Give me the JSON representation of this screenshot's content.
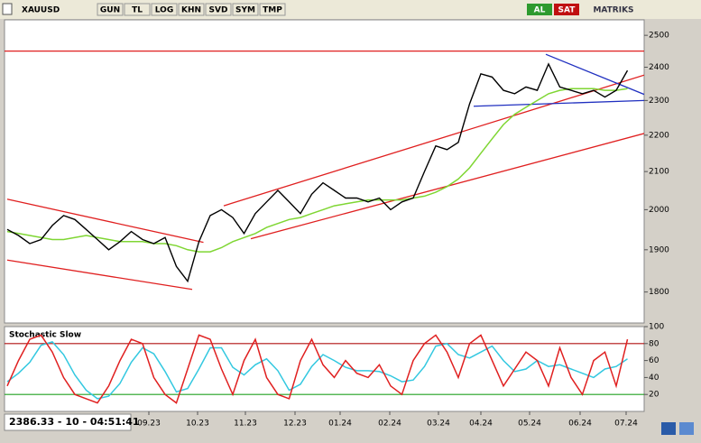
{
  "toolbar": {
    "symbol": "XAUUSD",
    "buttons": [
      "GUN",
      "TL",
      "LOG",
      "KHN",
      "SVD",
      "SYM",
      "TMP"
    ],
    "buy": "AL",
    "sell": "SAT",
    "brand": "MATRIKS"
  },
  "status": "2386.33 - 10 - 04:51:41",
  "chart_data": [
    {
      "type": "line",
      "log_scale": true,
      "color": "#000000",
      "x": [
        0,
        1,
        2,
        3,
        4,
        5,
        6,
        7,
        8,
        9,
        10,
        11,
        12,
        13,
        14,
        15,
        16,
        17,
        18,
        19,
        20,
        21,
        22,
        23,
        24,
        25,
        26,
        27,
        28,
        29,
        30,
        31,
        32,
        33,
        34,
        35,
        36,
        37,
        38,
        39,
        40,
        41,
        42,
        43,
        44,
        45,
        46,
        47,
        48,
        49,
        50,
        51,
        52,
        53,
        54,
        55
      ],
      "series": [
        {
          "color": "#000000",
          "values": [
            1950,
            1935,
            1915,
            1925,
            1960,
            1985,
            1975,
            1950,
            1925,
            1900,
            1920,
            1945,
            1925,
            1915,
            1930,
            1860,
            1825,
            1920,
            1985,
            2000,
            1980,
            1940,
            1990,
            2020,
            2050,
            2020,
            1990,
            2040,
            2070,
            2050,
            2030,
            2030,
            2020,
            2030,
            2000,
            2020,
            2030,
            2100,
            2170,
            2160,
            2180,
            2290,
            2380,
            2370,
            2330,
            2320,
            2340,
            2330,
            2410,
            2340,
            2330,
            2320,
            2330,
            2310,
            2330,
            2390
          ]
        },
        {
          "color": "#7fd633",
          "values": [
            1945,
            1940,
            1935,
            1930,
            1925,
            1925,
            1930,
            1935,
            1930,
            1925,
            1920,
            1920,
            1920,
            1915,
            1915,
            1910,
            1900,
            1895,
            1895,
            1905,
            1920,
            1930,
            1940,
            1955,
            1965,
            1975,
            1980,
            1990,
            2000,
            2010,
            2015,
            2020,
            2025,
            2025,
            2025,
            2025,
            2030,
            2035,
            2045,
            2060,
            2080,
            2110,
            2150,
            2190,
            2230,
            2260,
            2280,
            2300,
            2320,
            2330,
            2335,
            2335,
            2335,
            2330,
            2330,
            2335
          ]
        }
      ],
      "trendlines": [
        {
          "color": "#e02020",
          "x": [
            -0.24,
            56.48
          ],
          "y": [
            2450,
            2450
          ]
        },
        {
          "color": "#e02020",
          "x": [
            0,
            17.4
          ],
          "y": [
            2027,
            1918
          ]
        },
        {
          "color": "#e02020",
          "x": [
            0,
            16.4
          ],
          "y": [
            1875,
            1806
          ]
        },
        {
          "color": "#e02020",
          "x": [
            19.2,
            56.48
          ],
          "y": [
            2010,
            2376
          ]
        },
        {
          "color": "#e02020",
          "x": [
            21.6,
            56.48
          ],
          "y": [
            1927,
            2205
          ]
        },
        {
          "color": "#2030c0",
          "x": [
            47.76,
            56.48
          ],
          "y": [
            2440,
            2318
          ]
        },
        {
          "color": "#2030c0",
          "x": [
            41.36,
            56.48
          ],
          "y": [
            2283,
            2300
          ]
        }
      ],
      "xlim": [
        -0.24,
        56.48
      ],
      "ylim": [
        1730,
        2550
      ],
      "yticks": [
        1800,
        1900,
        2000,
        2100,
        2200,
        2300,
        2400,
        2500
      ]
    },
    {
      "type": "line",
      "title": "Stochastic Slow",
      "x": [
        0,
        1,
        2,
        3,
        4,
        5,
        6,
        7,
        8,
        9,
        10,
        11,
        12,
        13,
        14,
        15,
        16,
        17,
        18,
        19,
        20,
        21,
        22,
        23,
        24,
        25,
        26,
        27,
        28,
        29,
        30,
        31,
        32,
        33,
        34,
        35,
        36,
        37,
        38,
        39,
        40,
        41,
        42,
        43,
        44,
        45,
        46,
        47,
        48,
        49,
        50,
        51,
        52,
        53,
        54,
        55
      ],
      "series": [
        {
          "color": "#e02020",
          "values": [
            30,
            60,
            85,
            90,
            70,
            40,
            20,
            15,
            10,
            30,
            60,
            85,
            80,
            40,
            20,
            10,
            50,
            90,
            85,
            50,
            20,
            60,
            85,
            40,
            20,
            15,
            60,
            85,
            55,
            40,
            60,
            45,
            40,
            55,
            30,
            20,
            60,
            80,
            90,
            70,
            40,
            80,
            90,
            60,
            30,
            50,
            70,
            60,
            30,
            75,
            40,
            20,
            60,
            70,
            30,
            85
          ]
        },
        {
          "color": "#33c8e0",
          "values": [
            35,
            45,
            58,
            78,
            82,
            67,
            43,
            25,
            15,
            18,
            33,
            58,
            75,
            68,
            47,
            23,
            27,
            50,
            75,
            75,
            52,
            43,
            55,
            62,
            48,
            25,
            32,
            53,
            67,
            60,
            52,
            48,
            48,
            47,
            42,
            35,
            37,
            53,
            77,
            80,
            67,
            63,
            70,
            77,
            60,
            47,
            50,
            60,
            53,
            55,
            50,
            45,
            40,
            50,
            53,
            62
          ]
        }
      ],
      "levels": [
        {
          "value": 80,
          "color": "#b01010"
        },
        {
          "value": 20,
          "color": "#20a020"
        }
      ],
      "xlim": [
        -0.24,
        56.48
      ],
      "ylim": [
        0,
        100
      ],
      "yticks": [
        20,
        40,
        60,
        80,
        100
      ],
      "xticks": [
        {
          "value": 12.56,
          "label": "09.23"
        },
        {
          "value": 16.88,
          "label": "10.23"
        },
        {
          "value": 21.12,
          "label": "11.23"
        },
        {
          "value": 25.52,
          "label": "12.23"
        },
        {
          "value": 29.52,
          "label": "01.24"
        },
        {
          "value": 33.92,
          "label": "02.24"
        },
        {
          "value": 38.24,
          "label": "03.24"
        },
        {
          "value": 42,
          "label": "04.24"
        },
        {
          "value": 46.32,
          "label": "05.24"
        },
        {
          "value": 50.8,
          "label": "06.24"
        },
        {
          "value": 54.88,
          "label": "07.24"
        }
      ]
    }
  ]
}
